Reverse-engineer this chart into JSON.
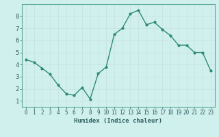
{
  "x": [
    0,
    1,
    2,
    3,
    4,
    5,
    6,
    7,
    8,
    9,
    10,
    11,
    12,
    13,
    14,
    15,
    16,
    17,
    18,
    19,
    20,
    21,
    22,
    23
  ],
  "y": [
    4.4,
    4.2,
    3.7,
    3.2,
    2.3,
    1.6,
    1.45,
    2.1,
    1.15,
    3.25,
    3.8,
    6.5,
    7.0,
    8.2,
    8.5,
    7.3,
    7.5,
    6.9,
    6.4,
    5.6,
    5.6,
    5.0,
    5.0,
    3.5
  ],
  "line_color": "#2e8b72",
  "marker_color": "#2e8b72",
  "bg_color": "#d0f0ee",
  "grid_color": "#c8e4e0",
  "axis_color": "#5aa898",
  "xlabel": "Humidex (Indice chaleur)",
  "xlim": [
    -0.5,
    23.5
  ],
  "ylim": [
    0.5,
    9.0
  ],
  "yticks": [
    1,
    2,
    3,
    4,
    5,
    6,
    7,
    8
  ],
  "xticks": [
    0,
    1,
    2,
    3,
    4,
    5,
    6,
    7,
    8,
    9,
    10,
    11,
    12,
    13,
    14,
    15,
    16,
    17,
    18,
    19,
    20,
    21,
    22,
    23
  ],
  "font_color": "#2e6060",
  "xlabel_fontsize": 6.5,
  "tick_fontsize": 5.5,
  "linewidth": 1.0,
  "markersize": 2.0
}
